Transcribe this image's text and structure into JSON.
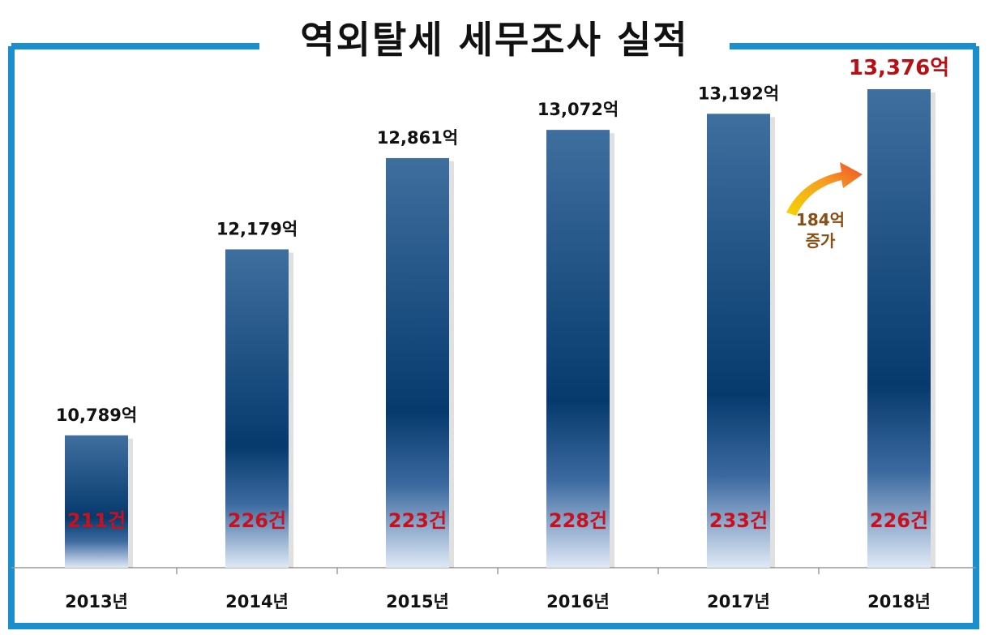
{
  "chart_data": {
    "type": "bar",
    "title": "역외탈세 세무조사 실적",
    "categories": [
      "2013년",
      "2014년",
      "2015년",
      "2016년",
      "2017년",
      "2018년"
    ],
    "values": [
      10789,
      12179,
      12861,
      13072,
      13192,
      13376
    ],
    "value_labels": [
      "10,789억",
      "12,179억",
      "12,861억",
      "13,072억",
      "13,192억",
      "13,376억"
    ],
    "case_labels": [
      "211건",
      "226건",
      "223건",
      "228건",
      "233건",
      "226건"
    ],
    "annotation": {
      "line1": "184억",
      "line2": "증가"
    },
    "xlabel": "",
    "ylabel": "",
    "ylim": [
      9800,
      13800
    ],
    "grid": false,
    "legend": "none",
    "colors": {
      "frame": "#1a8fd0",
      "bar_top": "#3f6f9f",
      "bar_mid": "#063a6d",
      "bar_bottom": "#dfe9f7",
      "case_label": "#c8101f",
      "highlight_label": "#b80f14",
      "annotation_text": "#8a4d14",
      "arrow_start": "#f5d400",
      "arrow_end": "#f0502a"
    }
  }
}
